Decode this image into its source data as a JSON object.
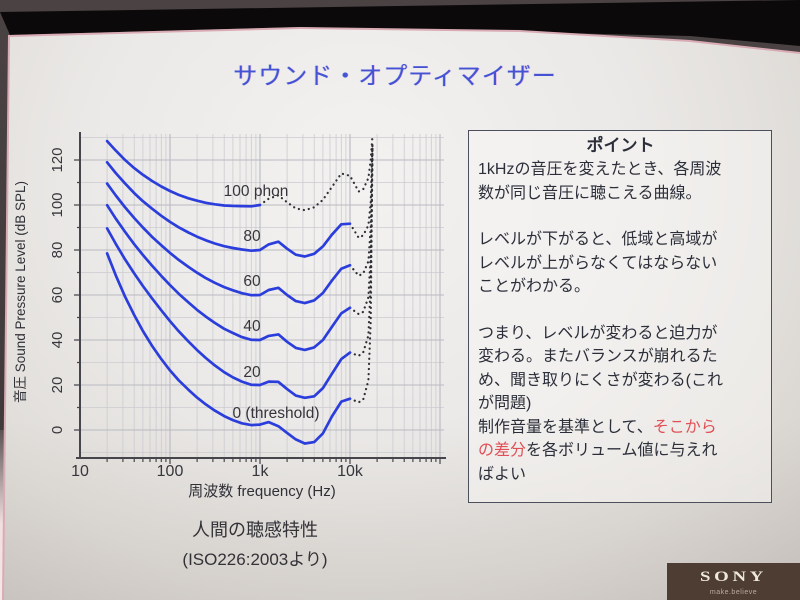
{
  "slide": {
    "title": "サウンド・オプティマイザー",
    "title_color": "#4652d4"
  },
  "chart_data": {
    "type": "line",
    "x_scale": "log",
    "xlabel": "周波数 frequency (Hz)",
    "ylabel": "音圧 Sound Pressure Level (dB SPL)",
    "x_tick_labels": [
      "10",
      "100",
      "1k",
      "10k"
    ],
    "y_tick_labels": [
      "0",
      "20",
      "40",
      "60",
      "80",
      "100",
      "120"
    ],
    "xlim": [
      10,
      100000
    ],
    "ylim": [
      -12,
      130
    ],
    "grid": true,
    "curve_color": "#2b3edc",
    "dotted_color": "#2f2f36",
    "frequencies": [
      20,
      25,
      31.5,
      40,
      50,
      63,
      80,
      100,
      125,
      160,
      200,
      250,
      315,
      400,
      500,
      630,
      800,
      1000,
      1250,
      1600,
      2000,
      2500,
      3150,
      4000,
      5000,
      6300,
      8000,
      10000,
      12500,
      14000,
      16000,
      17000,
      17800
    ],
    "series": [
      {
        "label": "0 (threshold)",
        "phon": 0,
        "solid_until_hz": 10000,
        "spl": [
          78.5,
          68.7,
          59.5,
          51.1,
          44,
          37.5,
          31.5,
          26.5,
          22.1,
          17.9,
          14.4,
          11.4,
          8.6,
          6.2,
          4.4,
          3,
          2.2,
          2.4,
          3.5,
          1.7,
          -1.3,
          -4.2,
          -6,
          -5.4,
          -1.5,
          6,
          12.6,
          13.9,
          12.3,
          13.5,
          22,
          48,
          124
        ]
      },
      {
        "label": "20",
        "phon": 20,
        "solid_until_hz": 10000,
        "spl": [
          89.6,
          82.7,
          76,
          69.6,
          64,
          58.6,
          53.2,
          48.4,
          43.9,
          39.4,
          35.5,
          32,
          28.7,
          25.7,
          23.4,
          21.5,
          20.1,
          20,
          21.5,
          21.4,
          18.2,
          15.3,
          14.3,
          15,
          18.6,
          25,
          31.5,
          34.4,
          33,
          34.5,
          42,
          65,
          125
        ]
      },
      {
        "label": "40",
        "phon": 40,
        "solid_until_hz": 10000,
        "spl": [
          99.9,
          93.9,
          88.2,
          82.6,
          77.8,
          73.1,
          68.5,
          64.4,
          60.6,
          56.7,
          53.4,
          50.4,
          47.6,
          45,
          43.1,
          41.3,
          40.1,
          40,
          41.8,
          42.5,
          39.2,
          36.5,
          35.6,
          36.7,
          40,
          45.8,
          51.8,
          54.3,
          51.5,
          52.5,
          59,
          78,
          126
        ]
      },
      {
        "label": "60",
        "phon": 60,
        "solid_until_hz": 10000,
        "spl": [
          109.5,
          104.2,
          99.1,
          94.2,
          90,
          85.9,
          82.1,
          78.7,
          75.6,
          72.5,
          69.9,
          67.5,
          65.4,
          63.5,
          62.1,
          60.8,
          59.9,
          60,
          62.2,
          63.2,
          60,
          57.3,
          56.4,
          57.6,
          60.9,
          66.4,
          71.7,
          73.2,
          68.6,
          69.5,
          75,
          90,
          127
        ]
      },
      {
        "label": "80",
        "phon": 80,
        "solid_until_hz": 10000,
        "spl": [
          119,
          114.2,
          109.7,
          105.3,
          101.7,
          98.4,
          95.2,
          92.5,
          90.1,
          87.8,
          85.9,
          84.3,
          82.9,
          81.7,
          80.9,
          80.2,
          79.7,
          80,
          82.5,
          83.7,
          80.6,
          77.9,
          77.1,
          78.3,
          81.6,
          86.8,
          91.4,
          91.7,
          85.4,
          86.5,
          91,
          101,
          128
        ]
      },
      {
        "label": "100 phon",
        "phon": 100,
        "solid_until_hz": 1000,
        "spl": [
          128.4,
          124.2,
          120.1,
          116.4,
          113.4,
          110.7,
          108.2,
          106.2,
          104.5,
          103,
          101.9,
          101,
          100.3,
          99.8,
          99.6,
          99.5,
          99.4,
          100,
          102.8,
          104.3,
          101.2,
          98.5,
          97.7,
          99,
          102.3,
          108,
          114,
          113,
          106,
          107,
          112,
          120,
          131
        ]
      }
    ],
    "caption_line1": "人間の聴感特性",
    "caption_line2": "(ISO226:2003より)"
  },
  "point_box": {
    "heading": "ポイント",
    "paragraphs": [
      {
        "text": "1kHzの音圧を変えたとき、各周波\n数が同じ音圧に聴こえる曲線。"
      },
      {
        "text": "レベルが下がると、低域と高域が\nレベルが上がらなくてはならない\nことがわかる。"
      },
      {
        "text": "つまり、レベルが変わると迫力が\n変わる。またバランスが崩れるた\nめ、聞き取りにくさが変わる(これ\nが問題)"
      },
      {
        "parts": [
          {
            "t": "制作音量を基準として、"
          },
          {
            "t": "そこから\nの差分",
            "highlight": true
          },
          {
            "t": "を各ボリューム値に与えれ\nばよい"
          }
        ]
      }
    ],
    "highlight_color": "#e05056"
  },
  "footer": {
    "logo_text": "SONY",
    "tagline": "make.believe"
  }
}
